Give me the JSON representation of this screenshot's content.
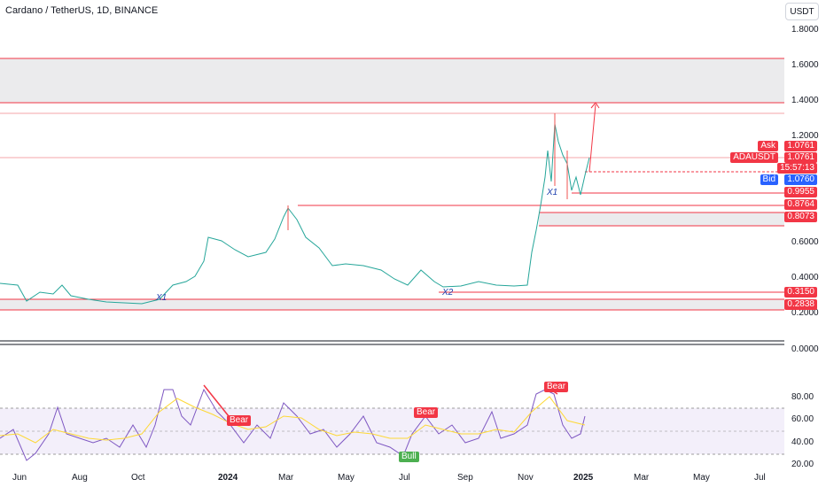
{
  "header": {
    "title": "Cardano / TetherUS, 1D, BINANCE",
    "currency": "USDT"
  },
  "price_axis": {
    "ticks": [
      "1.8000",
      "1.6000",
      "1.4000",
      "1.2000",
      "0.6000",
      "0.4000",
      "0.2000",
      "0.0000"
    ]
  },
  "price_labels": {
    "ask_label": "Ask",
    "ask_value": "1.0761",
    "symbol_label": "ADAUSDT",
    "last_value": "1.0761",
    "countdown": "15:57:13",
    "bid_label": "Bid",
    "bid_value": "1.0760",
    "levels": [
      "0.9955",
      "0.8764",
      "0.8073",
      "0.3150",
      "0.2838"
    ]
  },
  "annotations": {
    "x1_low": "X1",
    "x2": "X2",
    "x1_high": "X1",
    "bear_1": "Bear",
    "bear_2": "Bear",
    "bear_3": "Bear",
    "bull_1": "Bull"
  },
  "oscillator_axis": {
    "ticks": [
      "80.00",
      "60.00",
      "40.00",
      "20.00"
    ]
  },
  "time_axis": {
    "labels": [
      "Jun",
      "Aug",
      "Oct",
      "2024",
      "Mar",
      "May",
      "Jul",
      "Sep",
      "Nov",
      "2025",
      "Mar",
      "May",
      "Jul"
    ]
  },
  "colors": {
    "up": "#26a69a",
    "down": "#ef5350",
    "level_line": "#f23645",
    "rsi_line": "#7e57c2",
    "rsi_ma": "#fdd835",
    "bid": "#2962ff",
    "bull": "#4caf50"
  }
}
